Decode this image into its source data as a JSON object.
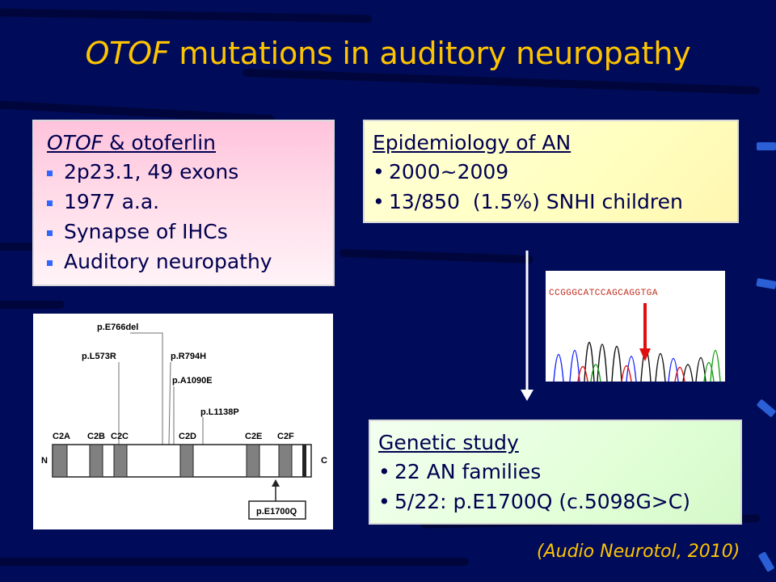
{
  "slide": {
    "title_italic": "OTOF",
    "title_rest": " mutations in auditory neuropathy",
    "citation": "(Audio Neurotol, 2010)"
  },
  "box_otof": {
    "heading_italic": "OTOF",
    "heading_rest": " & otoferlin",
    "items": [
      "2p23.1, 49 exons",
      "1977 a.a.",
      "Synapse of IHCs",
      "Auditory neuropathy"
    ]
  },
  "box_epi": {
    "heading": "Epidemiology of AN",
    "items": [
      "2000~2009",
      "13/850  (1.5%) SNHI children"
    ]
  },
  "box_genetic": {
    "heading": "Genetic study",
    "items": [
      "22 AN families",
      "5/22: p.E1700Q (c.5098G>C)"
    ]
  },
  "diagram": {
    "mutations": [
      "p.E766del",
      "p.L573R",
      "p.R794H",
      "p.A1090E",
      "p.L1138P"
    ],
    "domains": [
      "C2A",
      "C2B",
      "C2C",
      "C2D",
      "C2E",
      "C2F"
    ],
    "n_label": "N",
    "c_label": "C",
    "highlight": "p.E1700Q"
  },
  "sequence": {
    "bases": "CCGGGCATCCAGCAGGTGA"
  },
  "colors": {
    "background": "#000c5a",
    "title": "#ffc400",
    "text": "#000050",
    "arrow_red": "#e01010"
  }
}
